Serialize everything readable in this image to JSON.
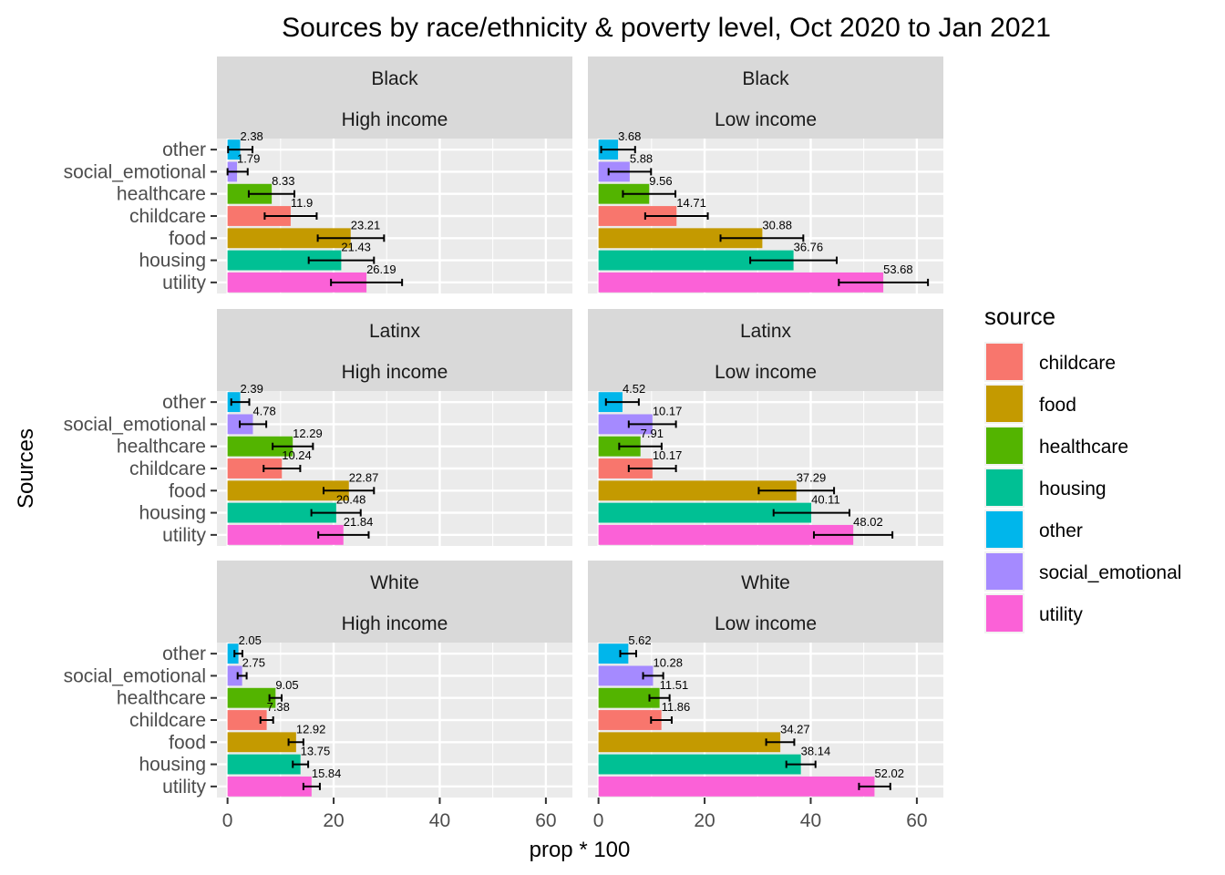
{
  "chart_data": {
    "type": "bar",
    "orientation": "horizontal",
    "title": "Sources by race/ethnicity & poverty level, Oct 2020 to Jan 2021",
    "xlabel": "prop * 100",
    "ylabel": "Sources",
    "xlim": [
      -2,
      65
    ],
    "xticks": [
      0,
      20,
      40,
      60
    ],
    "grid": true,
    "legend": {
      "title": "source",
      "position": "right",
      "entries": [
        "childcare",
        "food",
        "healthcare",
        "housing",
        "other",
        "social_emotional",
        "utility"
      ]
    },
    "colors": {
      "childcare": "#F8766D",
      "food": "#C49A00",
      "healthcare": "#53B400",
      "housing": "#00C094",
      "other": "#00B6EB",
      "social_emotional": "#A58AFF",
      "utility": "#FB61D7"
    },
    "categories": [
      "other",
      "social_emotional",
      "healthcare",
      "childcare",
      "food",
      "housing",
      "utility"
    ],
    "panels": [
      {
        "row_label": "Black",
        "col_label": "High income",
        "values": [
          2.38,
          1.79,
          8.33,
          11.9,
          23.21,
          21.43,
          26.19
        ],
        "labels": [
          "2.38",
          "1.79",
          "8.33",
          "11.9",
          "23.21",
          "21.43",
          "26.19"
        ],
        "err_low": [
          0.1,
          0,
          4,
          7,
          17,
          15.3,
          19.5
        ],
        "err_high": [
          4.7,
          3.8,
          12.6,
          16.8,
          29.5,
          27.6,
          32.9
        ]
      },
      {
        "row_label": "Black",
        "col_label": "Low income",
        "values": [
          3.68,
          5.88,
          9.56,
          14.71,
          30.88,
          36.76,
          53.68
        ],
        "labels": [
          "3.68",
          "5.88",
          "9.56",
          "14.71",
          "30.88",
          "36.76",
          "53.68"
        ],
        "err_low": [
          0.5,
          1.9,
          4.6,
          8.8,
          23,
          28.6,
          45.3
        ],
        "err_high": [
          6.9,
          9.9,
          14.5,
          20.6,
          38.6,
          44.9,
          62.1
        ]
      },
      {
        "row_label": "Latinx",
        "col_label": "High income",
        "values": [
          2.39,
          4.78,
          12.29,
          10.24,
          22.87,
          20.48,
          21.84
        ],
        "labels": [
          "2.39",
          "4.78",
          "12.29",
          "10.24",
          "22.87",
          "20.48",
          "21.84"
        ],
        "err_low": [
          0.7,
          2.3,
          8.5,
          6.8,
          18.1,
          15.8,
          17.1
        ],
        "err_high": [
          4.1,
          7.3,
          16.1,
          13.7,
          27.6,
          25.1,
          26.6
        ]
      },
      {
        "row_label": "Latinx",
        "col_label": "Low income",
        "values": [
          4.52,
          10.17,
          7.91,
          10.17,
          37.29,
          40.11,
          48.02
        ],
        "labels": [
          "4.52",
          "10.17",
          "7.91",
          "10.17",
          "37.29",
          "40.11",
          "48.02"
        ],
        "err_low": [
          1.4,
          5.7,
          3.9,
          5.7,
          30.2,
          33,
          40.6
        ],
        "err_high": [
          7.6,
          14.6,
          11.9,
          14.6,
          44.4,
          47.3,
          55.4
        ]
      },
      {
        "row_label": "White",
        "col_label": "High income",
        "values": [
          2.05,
          2.75,
          9.05,
          7.38,
          12.92,
          13.75,
          15.84
        ],
        "labels": [
          "2.05",
          "2.75",
          "9.05",
          "7.38",
          "12.92",
          "13.75",
          "15.84"
        ],
        "err_low": [
          1.3,
          1.9,
          7.9,
          6.2,
          11.5,
          12.3,
          14.3
        ],
        "err_high": [
          2.8,
          3.6,
          10.2,
          8.6,
          14.3,
          15.2,
          17.4
        ]
      },
      {
        "row_label": "White",
        "col_label": "Low income",
        "values": [
          5.62,
          10.28,
          11.51,
          11.86,
          34.27,
          38.14,
          52.02
        ],
        "labels": [
          "5.62",
          "10.28",
          "11.51",
          "11.86",
          "34.27",
          "38.14",
          "52.02"
        ],
        "err_low": [
          4.1,
          8.4,
          9.6,
          9.9,
          31.6,
          35.4,
          49.1
        ],
        "err_high": [
          7.1,
          12.2,
          13.4,
          13.8,
          36.9,
          40.9,
          55
        ]
      }
    ]
  }
}
